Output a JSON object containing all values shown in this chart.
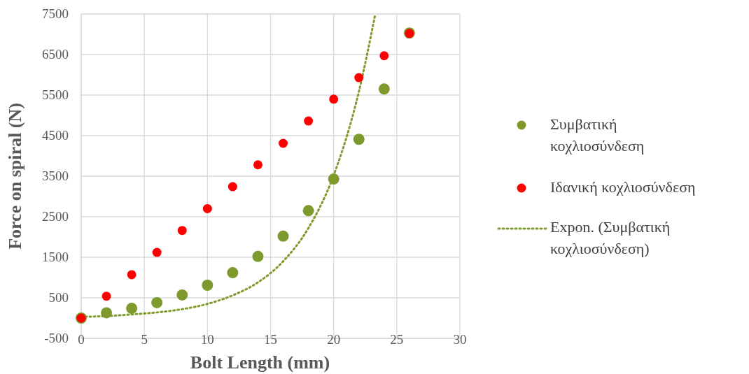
{
  "chart_data": {
    "type": "scatter",
    "xlabel": "Bolt Length (mm)",
    "ylabel": "Force on spiral (N)",
    "x": [
      0,
      2,
      4,
      6,
      8,
      10,
      12,
      14,
      16,
      18,
      20,
      22,
      24,
      26
    ],
    "series": [
      {
        "name": "Συμβατική κοχλιοσύνδεση",
        "color": "#7f9a2c",
        "values": [
          0,
          130,
          240,
          380,
          570,
          810,
          1120,
          1520,
          2020,
          2650,
          3430,
          4410,
          5650,
          7030
        ]
      },
      {
        "name": "Ιδανική κοχλιοσύνδεση",
        "color": "#ff0000",
        "values": [
          0,
          540,
          1070,
          1620,
          2160,
          2700,
          3240,
          3780,
          4310,
          4860,
          5400,
          5930,
          6470,
          7020
        ]
      },
      {
        "name": "Expon. (Συμβατική κοχλιοσύνδεση)",
        "type": "line",
        "line_style": "dotted",
        "marker": "none",
        "color": "#7f9a2c",
        "x": [
          0,
          2,
          4,
          6,
          8,
          10,
          12,
          14,
          16,
          18,
          20,
          22,
          23.3
        ],
        "values": [
          30,
          50,
          90,
          140,
          220,
          350,
          560,
          880,
          1400,
          2220,
          3520,
          5590,
          7500
        ]
      }
    ],
    "xlim": [
      0,
      30
    ],
    "xticks": [
      0,
      5,
      10,
      15,
      20,
      25,
      30
    ],
    "ylim": [
      -500,
      7500
    ],
    "yticks": [
      -500,
      500,
      1500,
      2500,
      3500,
      4500,
      5500,
      6500,
      7500
    ],
    "grid": true,
    "legend": "right",
    "marker": "circle"
  }
}
